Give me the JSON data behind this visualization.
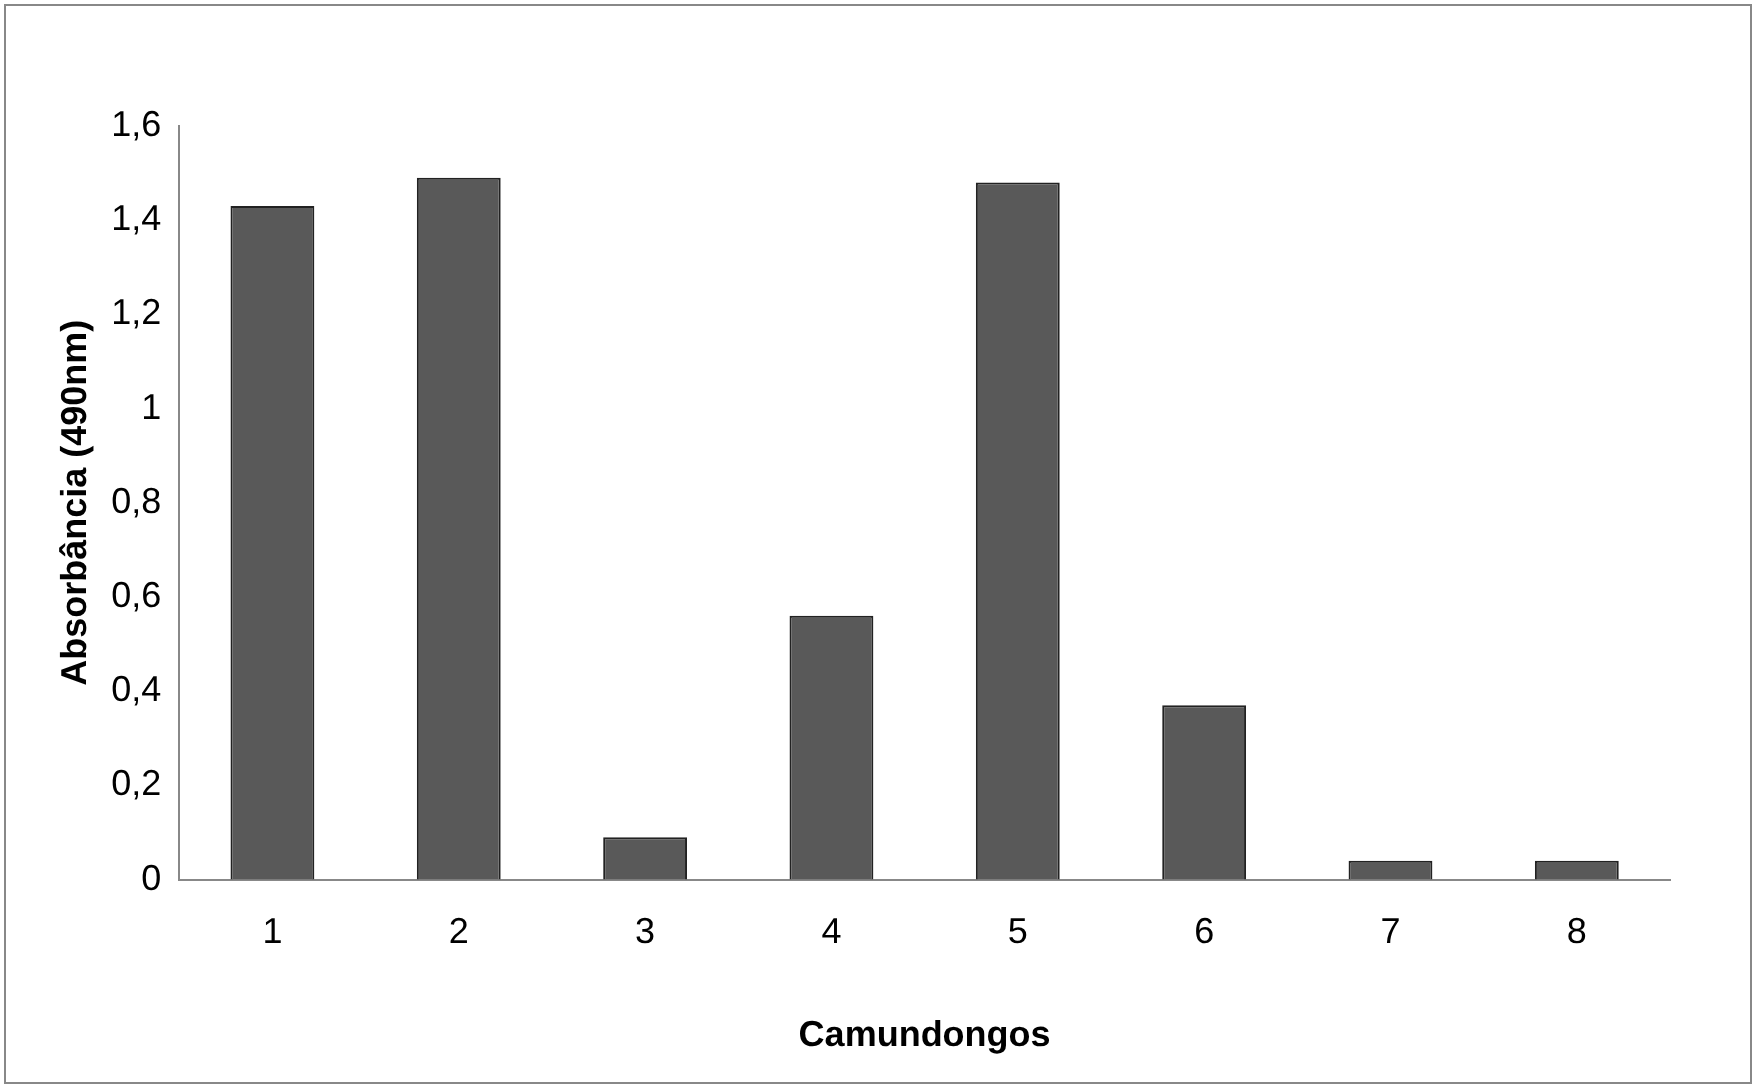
{
  "chart_data": {
    "type": "bar",
    "xlabel": "Camundongos",
    "ylabel": "Absorbância (490nm)",
    "categories": [
      "1",
      "2",
      "3",
      "4",
      "5",
      "6",
      "7",
      "8"
    ],
    "values": [
      1.43,
      1.49,
      0.09,
      0.56,
      1.48,
      0.37,
      0.04,
      0.04
    ],
    "color": "#595959",
    "ylim": [
      0,
      1.6
    ],
    "yticks": [
      0,
      {
        "value": 0.2,
        "label": "0,2"
      },
      {
        "value": 0.4,
        "label": "0,4"
      },
      {
        "value": 0.6,
        "label": "0,6"
      },
      {
        "value": 0.8,
        "label": "0,8"
      },
      1,
      {
        "value": 1.2,
        "label": "1,2"
      },
      {
        "value": 1.4,
        "label": "1,4"
      },
      {
        "value": 1.6,
        "label": "1,6"
      }
    ],
    "grid": false,
    "legend": false
  }
}
